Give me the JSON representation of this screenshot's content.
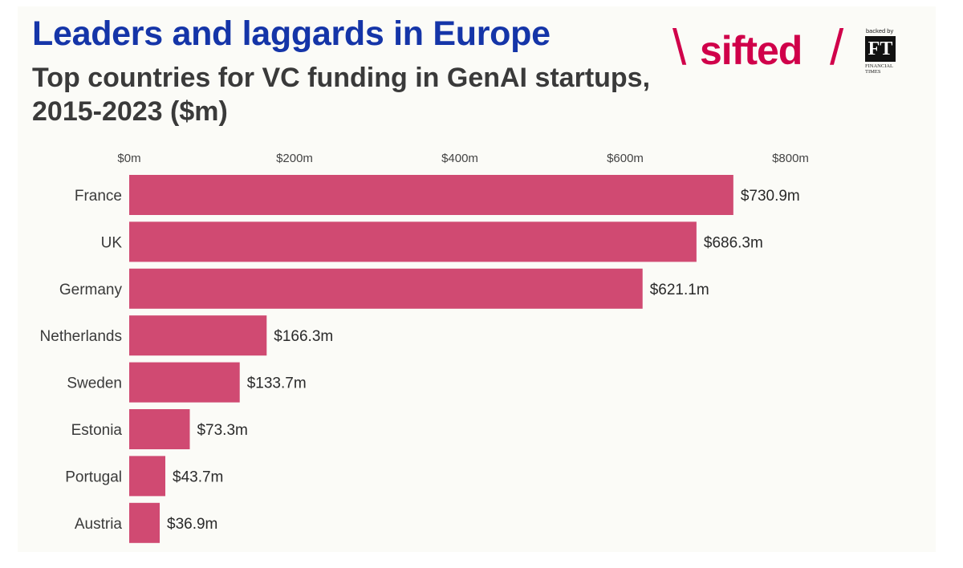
{
  "header": {
    "title": "Leaders and laggards in Europe",
    "subtitle": "Top countries for VC funding in GenAI startups, 2015-2023 ($m)"
  },
  "logo": {
    "brand": "sifted",
    "backed_by": "backed by",
    "ft_mark": "FT",
    "ft_name": "FINANCIAL TIMES"
  },
  "colors": {
    "bar": "#d04a72",
    "title": "#1535a8",
    "brand": "#d0004a"
  },
  "chart_data": {
    "type": "bar",
    "orientation": "horizontal",
    "title": "Leaders and laggards in Europe",
    "subtitle": "Top countries for VC funding in GenAI startups, 2015-2023 ($m)",
    "categories": [
      "France",
      "UK",
      "Germany",
      "Netherlands",
      "Sweden",
      "Estonia",
      "Portugal",
      "Austria"
    ],
    "values": [
      730.9,
      686.3,
      621.1,
      166.3,
      133.7,
      73.3,
      43.7,
      36.9
    ],
    "value_labels": [
      "$730.9m",
      "$686.3m",
      "$621.1m",
      "$166.3m",
      "$133.7m",
      "$73.3m",
      "$43.7m",
      "$36.9m"
    ],
    "xlim": [
      0,
      800
    ],
    "ticks": [
      0,
      200,
      400,
      600,
      800
    ],
    "tick_labels": [
      "$0m",
      "$200m",
      "$400m",
      "$600m",
      "$800m"
    ],
    "axis_position": "top",
    "xlabel": "",
    "ylabel": "",
    "grid": false
  }
}
